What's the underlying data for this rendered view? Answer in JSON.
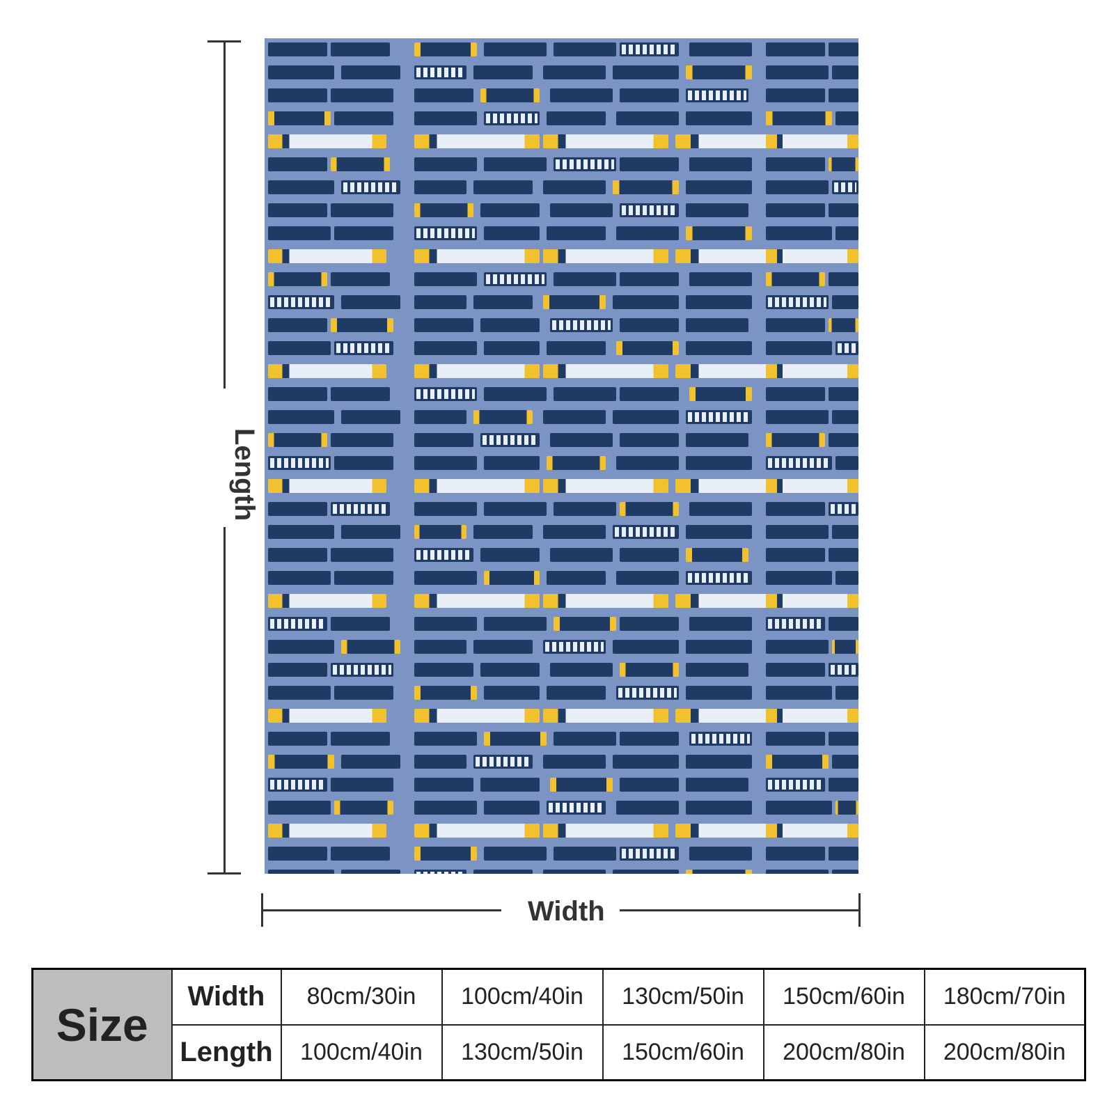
{
  "diagram": {
    "length_label": "Length",
    "width_label": "Width"
  },
  "colors": {
    "blanket_background": "#7b94c4",
    "train_blue": "#1f3b63",
    "train_yellow": "#f2c12e",
    "train_white": "#e8eef5"
  },
  "size_table": {
    "header": "Size",
    "rows": [
      {
        "label": "Width",
        "values": [
          "80cm/30in",
          "100cm/40in",
          "130cm/50in",
          "150cm/60in",
          "180cm/70in"
        ]
      },
      {
        "label": "Length",
        "values": [
          "100cm/40in",
          "130cm/50in",
          "150cm/60in",
          "200cm/80in",
          "200cm/80in"
        ]
      }
    ]
  }
}
